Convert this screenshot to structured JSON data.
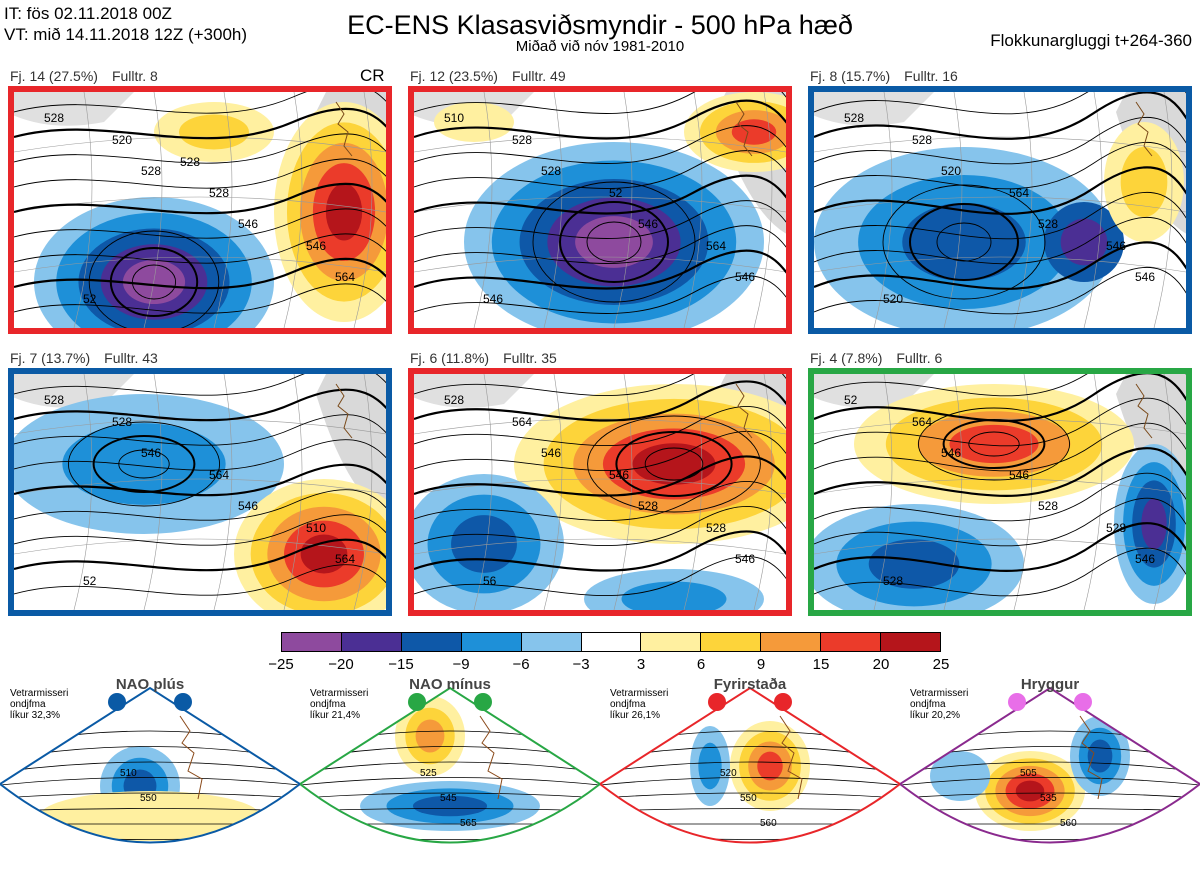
{
  "header": {
    "it_line": "IT: fös 02.11.2018 00Z",
    "vt_line": "VT: mið 14.11.2018 12Z  (+300h)",
    "title": "EC-ENS Klasasviðsmyndir - 500 hPa hæð",
    "subtitle": "Miðað við nóv 1981-2010",
    "window": "Flokkunargluggi t+264-360"
  },
  "panels": [
    {
      "fj": "Fj. 14 (27.5%)",
      "fulltr": "Fulltr. 8",
      "tag": "CR",
      "border": "#e8262a",
      "labels": [
        "528",
        "528",
        "546",
        "564",
        "520",
        "528",
        "546",
        "52",
        "528"
      ]
    },
    {
      "fj": "Fj. 12 (23.5%)",
      "fulltr": "Fulltr. 49",
      "tag": "",
      "border": "#e8262a",
      "labels": [
        "510",
        "528",
        "546",
        "546",
        "528",
        "52",
        "564",
        "546"
      ]
    },
    {
      "fj": "Fj. 8 (15.7%)",
      "fulltr": "Fulltr. 16",
      "tag": "",
      "border": "#0a5aa5",
      "labels": [
        "528",
        "520",
        "528",
        "546",
        "528",
        "564",
        "546",
        "520"
      ]
    },
    {
      "fj": "Fj. 7 (13.7%)",
      "fulltr": "Fulltr. 43",
      "tag": "",
      "border": "#0a5aa5",
      "labels": [
        "528",
        "546",
        "546",
        "564",
        "528",
        "564",
        "510",
        "52"
      ]
    },
    {
      "fj": "Fj. 6 (11.8%)",
      "fulltr": "Fulltr. 35",
      "tag": "",
      "border": "#e8262a",
      "labels": [
        "528",
        "546",
        "528",
        "546",
        "564",
        "546",
        "528",
        "56"
      ]
    },
    {
      "fj": "Fj. 4 (7.8%)",
      "fulltr": "Fulltr. 6",
      "tag": "",
      "border": "#28a745",
      "labels": [
        "52",
        "546",
        "528",
        "546",
        "564",
        "546",
        "528",
        "528"
      ]
    }
  ],
  "colorbar": {
    "colors": [
      "#8e4a9e",
      "#4b2f94",
      "#0e58a8",
      "#1e90d8",
      "#86c4ec",
      "#ffffff",
      "#fff0a0",
      "#fdd43a",
      "#f59a3a",
      "#eb3b2a",
      "#b5151b"
    ],
    "ticks": [
      "−25",
      "−20",
      "−15",
      "−9",
      "−6",
      "−3",
      "3",
      "6",
      "9",
      "15",
      "20",
      "25"
    ]
  },
  "regimes": [
    {
      "name": "NAO plús",
      "stat": [
        "Vetrarmisseri",
        "ondjfma",
        "líkur 32,3%"
      ],
      "color": "#0a5aa5",
      "labels": [
        "510",
        "550"
      ]
    },
    {
      "name": "NAO mínus",
      "stat": [
        "Vetrarmisseri",
        "ondjfma",
        "líkur 21,4%"
      ],
      "color": "#28a745",
      "labels": [
        "525",
        "545",
        "565"
      ]
    },
    {
      "name": "Fyrirstaða",
      "stat": [
        "Vetrarmisseri",
        "ondjfma",
        "líkur 26,1%"
      ],
      "color": "#e8262a",
      "labels": [
        "520",
        "550",
        "560"
      ]
    },
    {
      "name": "Hryggur",
      "stat": [
        "Vetrarmisseri",
        "ondjfma",
        "líkur 20,2%"
      ],
      "color": "#8a2a8e",
      "dot": "#e86ee8",
      "labels": [
        "505",
        "535",
        "560"
      ]
    }
  ]
}
